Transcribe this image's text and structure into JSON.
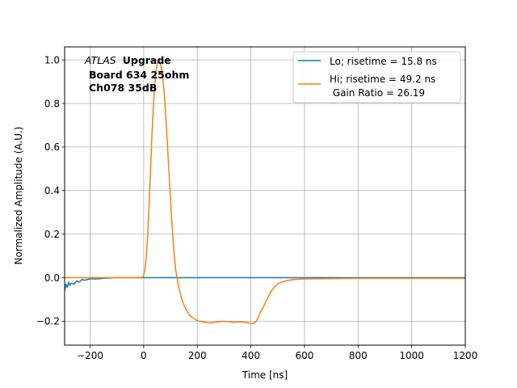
{
  "chart_data": {
    "type": "line",
    "title": "",
    "xlabel": "Time [ns]",
    "ylabel": "Normalized Amplitude (A.U.)",
    "xlim": [
      -295,
      1200
    ],
    "ylim": [
      -0.31,
      1.06
    ],
    "xticks": [
      -200,
      0,
      200,
      400,
      600,
      800,
      1000,
      1200
    ],
    "yticks": [
      -0.2,
      0.0,
      0.2,
      0.4,
      0.6,
      0.8,
      1.0
    ],
    "xtick_labels": [
      "−200",
      "0",
      "200",
      "400",
      "600",
      "800",
      "1000",
      "1200"
    ],
    "ytick_labels": [
      "−0.2",
      "0.0",
      "0.2",
      "0.4",
      "0.6",
      "0.8",
      "1.0"
    ],
    "grid": true,
    "legend_position": "top-right",
    "annotation": {
      "italic": "ATLAS",
      "bold": "Upgrade",
      "line2": "Board 634 25ohm",
      "line3": "Ch078 35dB"
    },
    "series": [
      {
        "name": "Lo; risetime = 15.8 ns",
        "color": "#1f77b4",
        "x": [
          -295,
          -290,
          -285,
          -280,
          -275,
          -270,
          -260,
          -250,
          -240,
          -230,
          -220,
          -200,
          -180,
          -150,
          -100,
          -50,
          0,
          100,
          200,
          300,
          400,
          500,
          600,
          700,
          800,
          900,
          1000,
          1100,
          1200
        ],
        "y": [
          -0.06,
          -0.03,
          -0.045,
          -0.02,
          -0.035,
          -0.025,
          -0.03,
          -0.015,
          -0.02,
          -0.008,
          -0.012,
          -0.005,
          -0.006,
          -0.003,
          0.0,
          0.0,
          0.0,
          0.0,
          0.0,
          0.0,
          0.0,
          0.0,
          0.0,
          0.0,
          0.0,
          0.0,
          0.0,
          0.0,
          0.0
        ]
      },
      {
        "name": "Hi; risetime = 49.2 ns",
        "name_line2": " Gain Ratio = 26.19",
        "color": "#ff7f0e",
        "x": [
          -295,
          -200,
          -100,
          -20,
          -5,
          0,
          5,
          10,
          15,
          20,
          25,
          30,
          35,
          40,
          45,
          50,
          55,
          60,
          65,
          70,
          75,
          80,
          85,
          90,
          95,
          100,
          105,
          110,
          115,
          120,
          130,
          140,
          150,
          160,
          170,
          180,
          190,
          200,
          210,
          220,
          230,
          240,
          250,
          260,
          280,
          300,
          320,
          340,
          360,
          380,
          400,
          410,
          415,
          420,
          425,
          430,
          435,
          440,
          445,
          450,
          460,
          470,
          480,
          490,
          500,
          520,
          540,
          560,
          580,
          600,
          650,
          700,
          800,
          900,
          1000,
          1100,
          1200
        ],
        "y": [
          0.0,
          0.0,
          0.0,
          0.0,
          0.002,
          0.01,
          0.04,
          0.1,
          0.2,
          0.33,
          0.48,
          0.63,
          0.76,
          0.87,
          0.94,
          0.98,
          1.0,
          0.995,
          0.97,
          0.93,
          0.87,
          0.79,
          0.69,
          0.58,
          0.47,
          0.36,
          0.26,
          0.17,
          0.09,
          0.03,
          -0.04,
          -0.09,
          -0.125,
          -0.15,
          -0.17,
          -0.182,
          -0.19,
          -0.197,
          -0.2,
          -0.203,
          -0.205,
          -0.207,
          -0.208,
          -0.205,
          -0.203,
          -0.2,
          -0.203,
          -0.205,
          -0.203,
          -0.205,
          -0.21,
          -0.21,
          -0.205,
          -0.2,
          -0.19,
          -0.175,
          -0.16,
          -0.15,
          -0.14,
          -0.125,
          -0.1,
          -0.075,
          -0.055,
          -0.04,
          -0.028,
          -0.018,
          -0.012,
          -0.009,
          -0.007,
          -0.006,
          -0.005,
          -0.004,
          -0.003,
          -0.003,
          -0.003,
          -0.003,
          -0.003
        ]
      }
    ]
  }
}
